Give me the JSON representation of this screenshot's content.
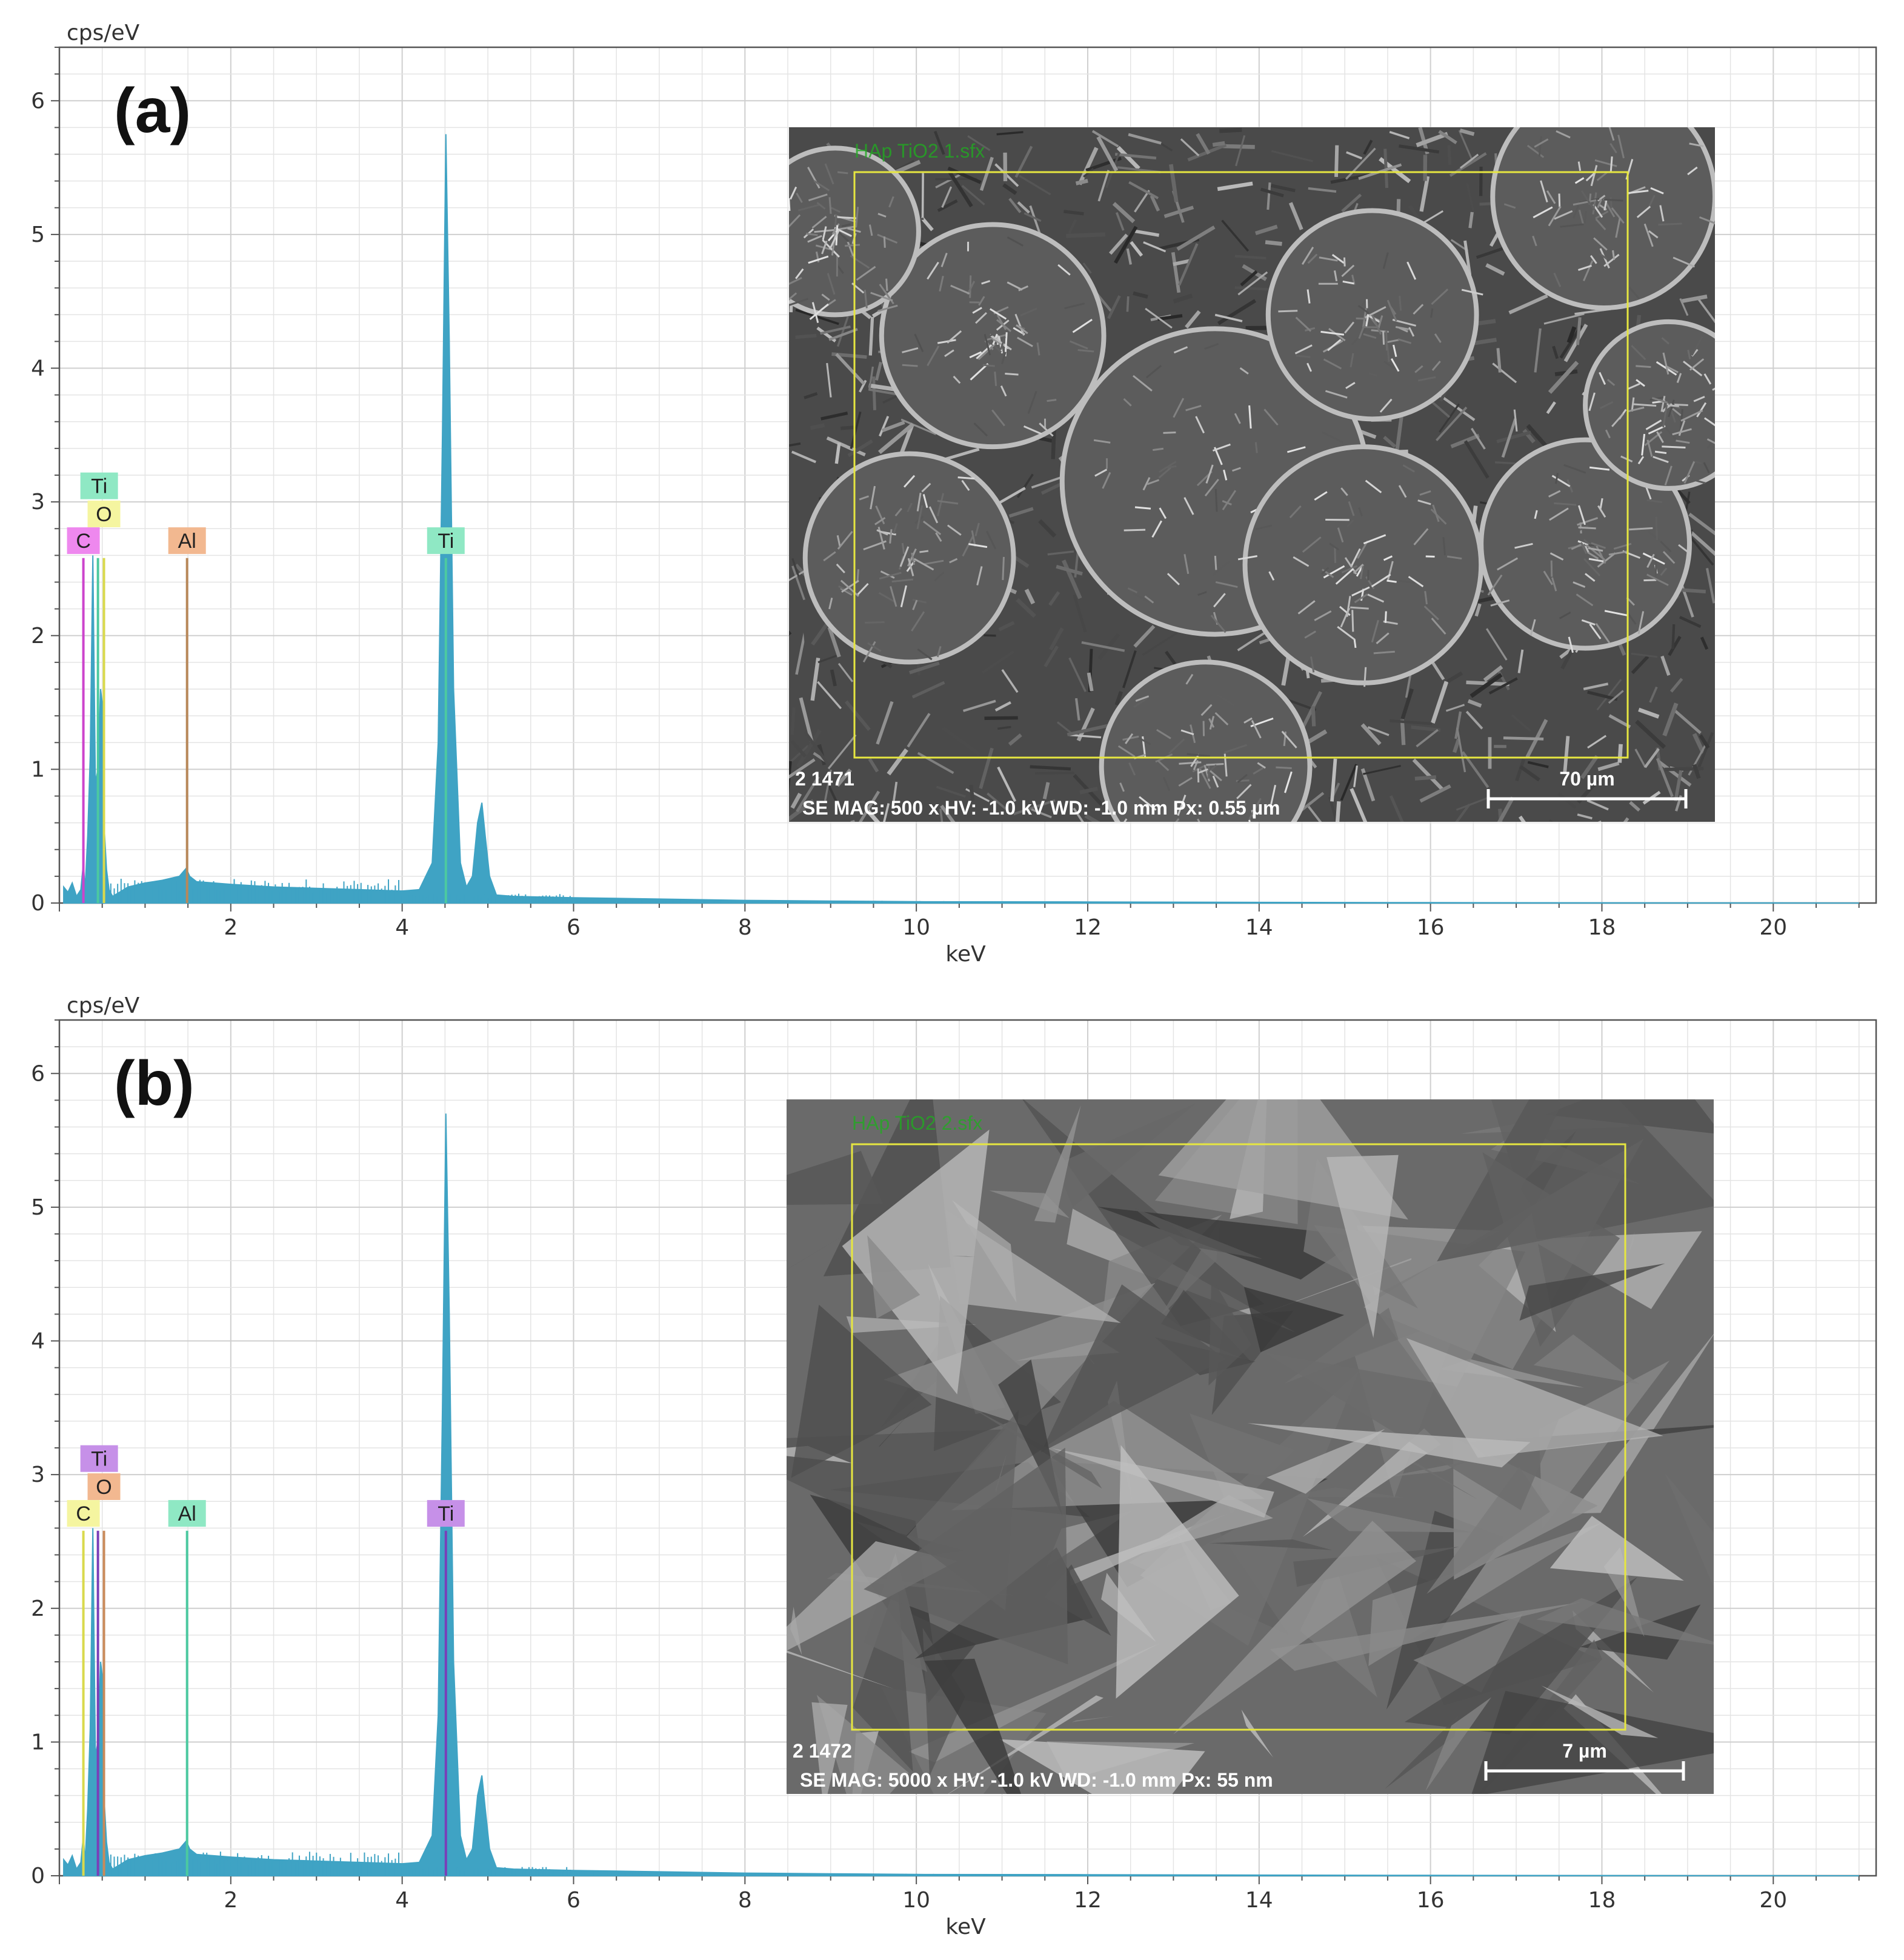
{
  "chart_data": [
    {
      "type": "line",
      "panel_label": "(a)",
      "ylabel": "cps/eV",
      "xlabel": "keV",
      "xlim": [
        0,
        21.2
      ],
      "ylim": [
        0,
        6.4
      ],
      "x_ticks": [
        2,
        4,
        6,
        8,
        10,
        12,
        14,
        16,
        18,
        20
      ],
      "y_ticks": [
        0,
        1,
        2,
        3,
        4,
        5,
        6
      ],
      "grid": true,
      "fill_color": "#3fa3c4",
      "series": [
        {
          "x": [
            0.05,
            0.1,
            0.15,
            0.2,
            0.25,
            0.28,
            0.3,
            0.33,
            0.36,
            0.39,
            0.42,
            0.45,
            0.48,
            0.5,
            0.52,
            0.55,
            0.58,
            0.62,
            0.7,
            0.8,
            1.0,
            1.2,
            1.4,
            1.48,
            1.52,
            1.6,
            1.8,
            2.0,
            2.5,
            3.0,
            3.5,
            4.0,
            4.2,
            4.35,
            4.42,
            4.47,
            4.51,
            4.55,
            4.6,
            4.68,
            4.75,
            4.82,
            4.88,
            4.93,
            4.97,
            5.02,
            5.1,
            5.3,
            6.0,
            7.0,
            8.0,
            9.0,
            10.0,
            12.0,
            14.0,
            16.0,
            18.0,
            20.0,
            21.0
          ],
          "y": [
            0.12,
            0.08,
            0.15,
            0.05,
            0.1,
            0.3,
            0.1,
            0.5,
            1.1,
            2.6,
            0.9,
            1.0,
            1.6,
            1.5,
            0.6,
            0.25,
            0.1,
            0.05,
            0.08,
            0.12,
            0.15,
            0.17,
            0.2,
            0.26,
            0.2,
            0.16,
            0.15,
            0.14,
            0.12,
            0.11,
            0.1,
            0.09,
            0.1,
            0.3,
            1.2,
            3.5,
            5.75,
            4.2,
            1.6,
            0.3,
            0.12,
            0.2,
            0.6,
            0.75,
            0.5,
            0.2,
            0.06,
            0.05,
            0.04,
            0.03,
            0.02,
            0.015,
            0.01,
            0.008,
            0.005,
            0.003,
            0.002,
            0.001,
            0.0
          ]
        }
      ],
      "element_lines": [
        {
          "label": "Ti",
          "x": 0.45,
          "line_color": "#4cc9a0",
          "badge_color": "#8fe8c4",
          "label_y": 3.12
        },
        {
          "label": "O",
          "x": 0.52,
          "line_color": "#d9d94c",
          "badge_color": "#f5f5a0",
          "label_y": 2.91
        },
        {
          "label": "C",
          "x": 0.28,
          "line_color": "#cc44cc",
          "badge_color": "#ee88ee",
          "label_y": 2.71
        },
        {
          "label": "Al",
          "x": 1.49,
          "line_color": "#b8885a",
          "badge_color": "#f2b890",
          "label_y": 2.71
        },
        {
          "label": "Ti",
          "x": 4.51,
          "line_color": "#4cc9a0",
          "badge_color": "#8fe8c4",
          "label_y": 2.71
        }
      ],
      "inset": {
        "filename": "HAp TiO2 1.sfx",
        "image_id": "2 1471",
        "scale_label": "70 µm",
        "info": "SE  MAG: 500 x  HV: -1.0 kV  WD: -1.0 mm  Px: 0.55 µm",
        "morphology": "spheres"
      }
    },
    {
      "type": "line",
      "panel_label": "(b)",
      "ylabel": "cps/eV",
      "xlabel": "keV",
      "xlim": [
        0,
        21.2
      ],
      "ylim": [
        0,
        6.4
      ],
      "x_ticks": [
        2,
        4,
        6,
        8,
        10,
        12,
        14,
        16,
        18,
        20
      ],
      "y_ticks": [
        0,
        1,
        2,
        3,
        4,
        5,
        6
      ],
      "grid": true,
      "fill_color": "#3fa3c4",
      "series": [
        {
          "x": [
            0.05,
            0.1,
            0.15,
            0.2,
            0.25,
            0.28,
            0.3,
            0.33,
            0.36,
            0.39,
            0.42,
            0.45,
            0.48,
            0.5,
            0.52,
            0.55,
            0.58,
            0.62,
            0.7,
            0.8,
            1.0,
            1.2,
            1.4,
            1.48,
            1.52,
            1.6,
            1.8,
            2.0,
            2.5,
            3.0,
            3.5,
            4.0,
            4.2,
            4.35,
            4.42,
            4.47,
            4.51,
            4.55,
            4.6,
            4.68,
            4.75,
            4.82,
            4.88,
            4.93,
            4.97,
            5.02,
            5.1,
            5.3,
            6.0,
            7.0,
            8.0,
            9.0,
            10.0,
            12.0,
            14.0,
            16.0,
            18.0,
            20.0,
            21.0
          ],
          "y": [
            0.12,
            0.08,
            0.15,
            0.05,
            0.1,
            0.3,
            0.1,
            0.5,
            1.1,
            2.6,
            0.9,
            1.0,
            1.6,
            1.5,
            0.6,
            0.25,
            0.1,
            0.05,
            0.08,
            0.12,
            0.15,
            0.17,
            0.2,
            0.26,
            0.2,
            0.16,
            0.15,
            0.14,
            0.12,
            0.11,
            0.1,
            0.09,
            0.1,
            0.3,
            1.2,
            3.5,
            5.7,
            4.2,
            1.6,
            0.3,
            0.12,
            0.2,
            0.6,
            0.75,
            0.5,
            0.2,
            0.06,
            0.05,
            0.04,
            0.03,
            0.02,
            0.015,
            0.01,
            0.008,
            0.005,
            0.003,
            0.002,
            0.001,
            0.0
          ]
        }
      ],
      "element_lines": [
        {
          "label": "Ti",
          "x": 0.45,
          "line_color": "#7a3fb8",
          "badge_color": "#c690e8",
          "label_y": 3.12
        },
        {
          "label": "O",
          "x": 0.52,
          "line_color": "#c98a5a",
          "badge_color": "#f2b890",
          "label_y": 2.91
        },
        {
          "label": "C",
          "x": 0.28,
          "line_color": "#d9d94c",
          "badge_color": "#f5f5a0",
          "label_y": 2.71
        },
        {
          "label": "Al",
          "x": 1.49,
          "line_color": "#4cc9a0",
          "badge_color": "#8fe8c4",
          "label_y": 2.71
        },
        {
          "label": "Ti",
          "x": 4.51,
          "line_color": "#7a3fb8",
          "badge_color": "#c690e8",
          "label_y": 2.71
        }
      ],
      "inset": {
        "filename": "HAp TiO2 2.sfx",
        "image_id": "2 1472",
        "scale_label": "7 µm",
        "info": "SE  MAG: 5000 x  HV: -1.0 kV  WD: -1.0 mm  Px: 55 nm",
        "morphology": "facets"
      }
    }
  ]
}
